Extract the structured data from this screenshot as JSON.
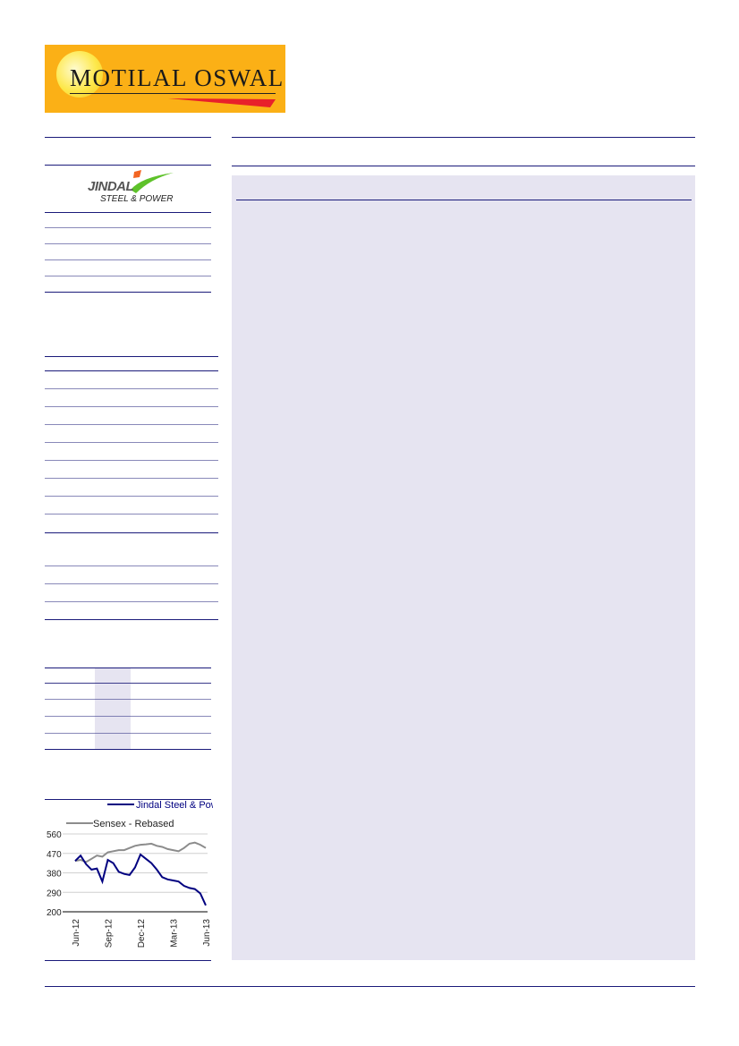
{
  "header": {
    "logo_text": "MOTILAL OSWAL"
  },
  "company_logo": {
    "name": "JINDAL",
    "subtitle": "STEEL & POWER"
  },
  "colors": {
    "accent": "#1a1a7a",
    "logo_bg": "#fbb016",
    "panel_bg": "#e6e4f1",
    "jsp_series": "#000080",
    "sensex_series": "#8c8c8c"
  },
  "chart_data": {
    "type": "line",
    "ylim": [
      200,
      560
    ],
    "yticks": [
      "560",
      "470",
      "380",
      "290",
      "200"
    ],
    "xticks": [
      "Jun-12",
      "Sep-12",
      "Dec-12",
      "Mar-13",
      "Jun-13"
    ],
    "legend_position": "top",
    "grid": true,
    "x": [
      "Jun-12",
      "Jul-12",
      "Jul-12",
      "Aug-12",
      "Aug-12",
      "Sep-12",
      "Sep-12",
      "Oct-12",
      "Oct-12",
      "Nov-12",
      "Nov-12",
      "Dec-12",
      "Dec-12",
      "Jan-13",
      "Jan-13",
      "Feb-13",
      "Feb-13",
      "Mar-13",
      "Mar-13",
      "Apr-13",
      "Apr-13",
      "May-13",
      "May-13",
      "Jun-13",
      "Jun-13"
    ],
    "series": [
      {
        "name": "Jindal Steel & Power",
        "values": [
          435,
          460,
          420,
          395,
          400,
          340,
          440,
          425,
          385,
          375,
          370,
          405,
          465,
          445,
          425,
          395,
          360,
          350,
          345,
          340,
          320,
          310,
          305,
          285,
          230
        ]
      },
      {
        "name": "Sensex - Rebased",
        "values": [
          435,
          440,
          430,
          445,
          460,
          455,
          475,
          480,
          485,
          485,
          495,
          505,
          510,
          512,
          515,
          505,
          500,
          490,
          485,
          480,
          495,
          515,
          520,
          510,
          495
        ]
      }
    ]
  }
}
